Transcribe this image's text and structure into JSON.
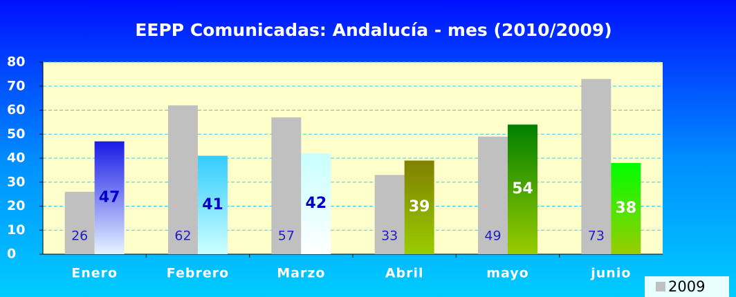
{
  "chart_data": {
    "type": "bar",
    "title": "EEPP Comunicadas: Andalucía - mes  (2010/2009)",
    "categories": [
      "Enero",
      "Febrero",
      "Marzo",
      "Abril",
      "mayo",
      "junio"
    ],
    "series": [
      {
        "name": "2009",
        "color": "#c0c0c0",
        "values": [
          26,
          62,
          57,
          33,
          49,
          73
        ],
        "label_color": "#2020c0"
      },
      {
        "values": [
          47,
          41,
          42,
          39,
          54,
          38
        ],
        "colors": [
          [
            "#1a1ae6",
            "#e6f4ff"
          ],
          [
            "#33ccff",
            "#ccffff"
          ],
          [
            "#c8ffff",
            "#ffffff"
          ],
          [
            "#808000",
            "#99cc00"
          ],
          [
            "#008000",
            "#99cc00"
          ],
          [
            "#00ff00",
            "#99cc00"
          ]
        ],
        "label_colors": [
          "#0000cc",
          "#0000cc",
          "#0000cc",
          "#ffffff",
          "#ffffff",
          "#ffffff"
        ]
      }
    ],
    "ylim": [
      0,
      80
    ],
    "yticks": [
      0,
      10,
      20,
      30,
      40,
      50,
      60,
      70,
      80
    ],
    "grid": true,
    "legend": "bottom-right"
  }
}
